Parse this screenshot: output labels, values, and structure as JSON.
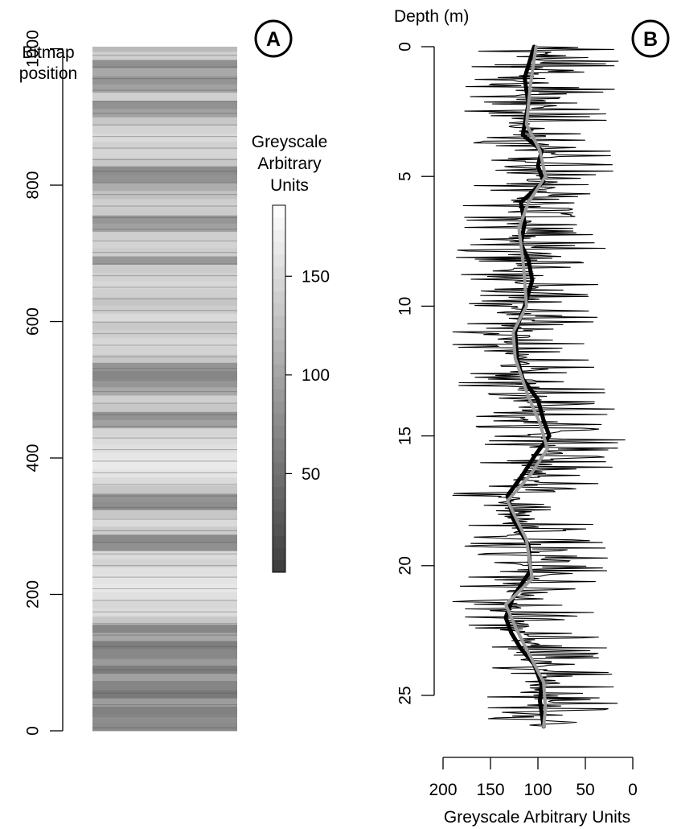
{
  "chart_data": [
    {
      "panel_label": "A",
      "type": "heatmap",
      "ylabel": "Bitmap\nposition",
      "ylim": [
        0,
        1003
      ],
      "yticks": [
        0,
        200,
        400,
        600,
        800,
        1000
      ],
      "greyscale_bands": [
        [
          0,
          74
        ],
        [
          12,
          78
        ],
        [
          24,
          66
        ],
        [
          36,
          92
        ],
        [
          48,
          58
        ],
        [
          60,
          70
        ],
        [
          72,
          96
        ],
        [
          84,
          62
        ],
        [
          96,
          90
        ],
        [
          108,
          72
        ],
        [
          120,
          64
        ],
        [
          132,
          102
        ],
        [
          144,
          70
        ],
        [
          156,
          132
        ],
        [
          168,
          152
        ],
        [
          180,
          148
        ],
        [
          192,
          156
        ],
        [
          204,
          164
        ],
        [
          216,
          160
        ],
        [
          228,
          156
        ],
        [
          240,
          144
        ],
        [
          252,
          150
        ],
        [
          264,
          80
        ],
        [
          276,
          74
        ],
        [
          288,
          136
        ],
        [
          300,
          150
        ],
        [
          312,
          132
        ],
        [
          324,
          78
        ],
        [
          336,
          84
        ],
        [
          348,
          132
        ],
        [
          360,
          150
        ],
        [
          372,
          160
        ],
        [
          384,
          166
        ],
        [
          396,
          162
        ],
        [
          408,
          156
        ],
        [
          420,
          150
        ],
        [
          432,
          146
        ],
        [
          444,
          96
        ],
        [
          456,
          82
        ],
        [
          468,
          132
        ],
        [
          480,
          140
        ],
        [
          492,
          104
        ],
        [
          504,
          86
        ],
        [
          516,
          70
        ],
        [
          528,
          84
        ],
        [
          540,
          132
        ],
        [
          552,
          144
        ],
        [
          564,
          148
        ],
        [
          576,
          140
        ],
        [
          588,
          134
        ],
        [
          600,
          150
        ],
        [
          612,
          138
        ],
        [
          624,
          130
        ],
        [
          636,
          140
        ],
        [
          648,
          148
        ],
        [
          660,
          142
        ],
        [
          672,
          136
        ],
        [
          684,
          88
        ],
        [
          696,
          138
        ],
        [
          708,
          144
        ],
        [
          720,
          140
        ],
        [
          732,
          96
        ],
        [
          744,
          86
        ],
        [
          756,
          136
        ],
        [
          768,
          140
        ],
        [
          780,
          128
        ],
        [
          792,
          108
        ],
        [
          804,
          82
        ],
        [
          816,
          76
        ],
        [
          828,
          132
        ],
        [
          840,
          146
        ],
        [
          852,
          142
        ],
        [
          864,
          150
        ],
        [
          876,
          144
        ],
        [
          888,
          132
        ],
        [
          900,
          96
        ],
        [
          912,
          82
        ],
        [
          924,
          140
        ],
        [
          936,
          96
        ],
        [
          948,
          84
        ],
        [
          960,
          104
        ],
        [
          972,
          80
        ],
        [
          984,
          140
        ],
        [
          996,
          120
        ]
      ]
    },
    {
      "panel_label": "B",
      "type": "line",
      "ylabel": "Depth (m)",
      "xlabel": "Greyscale Arbitrary Units",
      "xlim": [
        200,
        0
      ],
      "ylim": [
        0,
        26
      ],
      "xticks": [
        200,
        150,
        100,
        50,
        0
      ],
      "yticks": [
        0,
        5,
        10,
        15,
        20,
        25
      ],
      "smoothed_trend": {
        "depth": [
          0,
          1.5,
          3,
          4,
          5,
          6,
          7,
          8.5,
          10,
          11,
          12,
          13.5,
          14.5,
          15.5,
          16.5,
          17.5,
          19,
          20.5,
          21.5,
          22.5,
          23.5,
          24.5,
          25.5,
          26.2
        ],
        "value": [
          102,
          108,
          112,
          98,
          92,
          110,
          120,
          115,
          112,
          126,
          124,
          110,
          98,
          90,
          108,
          132,
          112,
          106,
          134,
          122,
          108,
          94,
          92,
          94
        ]
      },
      "gsub_trend_black": {
        "depth": [
          0,
          1.2,
          2.2,
          3.4,
          4,
          4.6,
          5.2,
          6,
          6.8,
          7.6,
          8.2,
          9,
          10,
          11,
          12,
          12.8,
          13.6,
          14.4,
          15,
          15.8,
          16.5,
          17.3,
          18.2,
          19.2,
          20.2,
          21.2,
          22,
          22.6,
          23.2,
          23.8,
          24.6,
          25.2,
          26.2
        ],
        "value": [
          104,
          114,
          110,
          116,
          96,
          100,
          94,
          118,
          114,
          118,
          110,
          106,
          114,
          124,
          122,
          116,
          100,
          94,
          88,
          104,
          116,
          132,
          126,
          110,
          108,
          126,
          134,
          128,
          118,
          104,
          96,
          98,
          94
        ]
      }
    }
  ],
  "colorbar": {
    "title": "Greyscale\nArbitrary\nUnits",
    "range": [
      0,
      186
    ],
    "ticks": [
      50,
      100,
      150
    ]
  }
}
